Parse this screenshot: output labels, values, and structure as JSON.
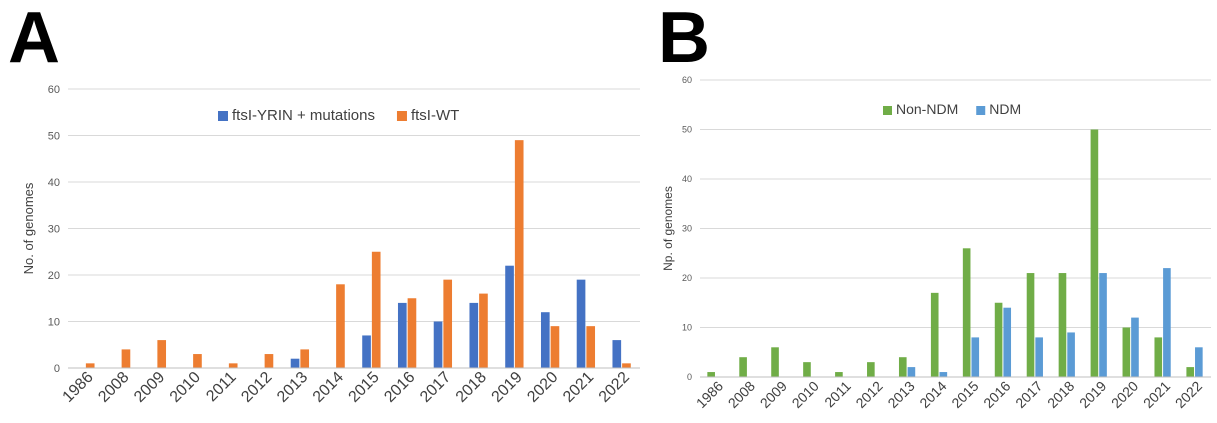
{
  "chart_data": [
    {
      "panel_label": "A",
      "type": "bar",
      "categories": [
        "1986",
        "2008",
        "2009",
        "2010",
        "2011",
        "2012",
        "2013",
        "2014",
        "2015",
        "2016",
        "2017",
        "2018",
        "2019",
        "2020",
        "2021",
        "2022"
      ],
      "series": [
        {
          "name": "ftsI-YRIN + mutations",
          "color": "#4472C4",
          "values": [
            0,
            0,
            0,
            0,
            0,
            0,
            2,
            0,
            7,
            14,
            10,
            14,
            22,
            12,
            19,
            6
          ]
        },
        {
          "name": "ftsI-WT",
          "color": "#ED7D31",
          "values": [
            1,
            4,
            6,
            3,
            1,
            3,
            4,
            18,
            25,
            15,
            19,
            16,
            49,
            9,
            9,
            1
          ]
        }
      ],
      "ylabel": "No. of genomes",
      "xlabel": "",
      "ylim": [
        0,
        60
      ],
      "yticks": [
        0,
        10,
        20,
        30,
        40,
        50,
        60
      ],
      "grid": true,
      "legend_position": "top"
    },
    {
      "panel_label": "B",
      "type": "bar",
      "categories": [
        "1986",
        "2008",
        "2009",
        "2010",
        "2011",
        "2012",
        "2013",
        "2014",
        "2015",
        "2016",
        "2017",
        "2018",
        "2019",
        "2020",
        "2021",
        "2022"
      ],
      "series": [
        {
          "name": "Non-NDM",
          "color": "#70AD47",
          "values": [
            1,
            4,
            6,
            3,
            1,
            3,
            4,
            17,
            26,
            15,
            21,
            21,
            50,
            10,
            8,
            2
          ]
        },
        {
          "name": "NDM",
          "color": "#5B9BD5",
          "values": [
            0,
            0,
            0,
            0,
            0,
            0,
            2,
            1,
            8,
            14,
            8,
            9,
            21,
            12,
            22,
            6
          ]
        }
      ],
      "ylabel": "Np. of genomes",
      "xlabel": "",
      "ylim": [
        0,
        60
      ],
      "yticks": [
        0,
        10,
        20,
        30,
        40,
        50,
        60
      ],
      "grid": true,
      "legend_position": "top"
    }
  ]
}
